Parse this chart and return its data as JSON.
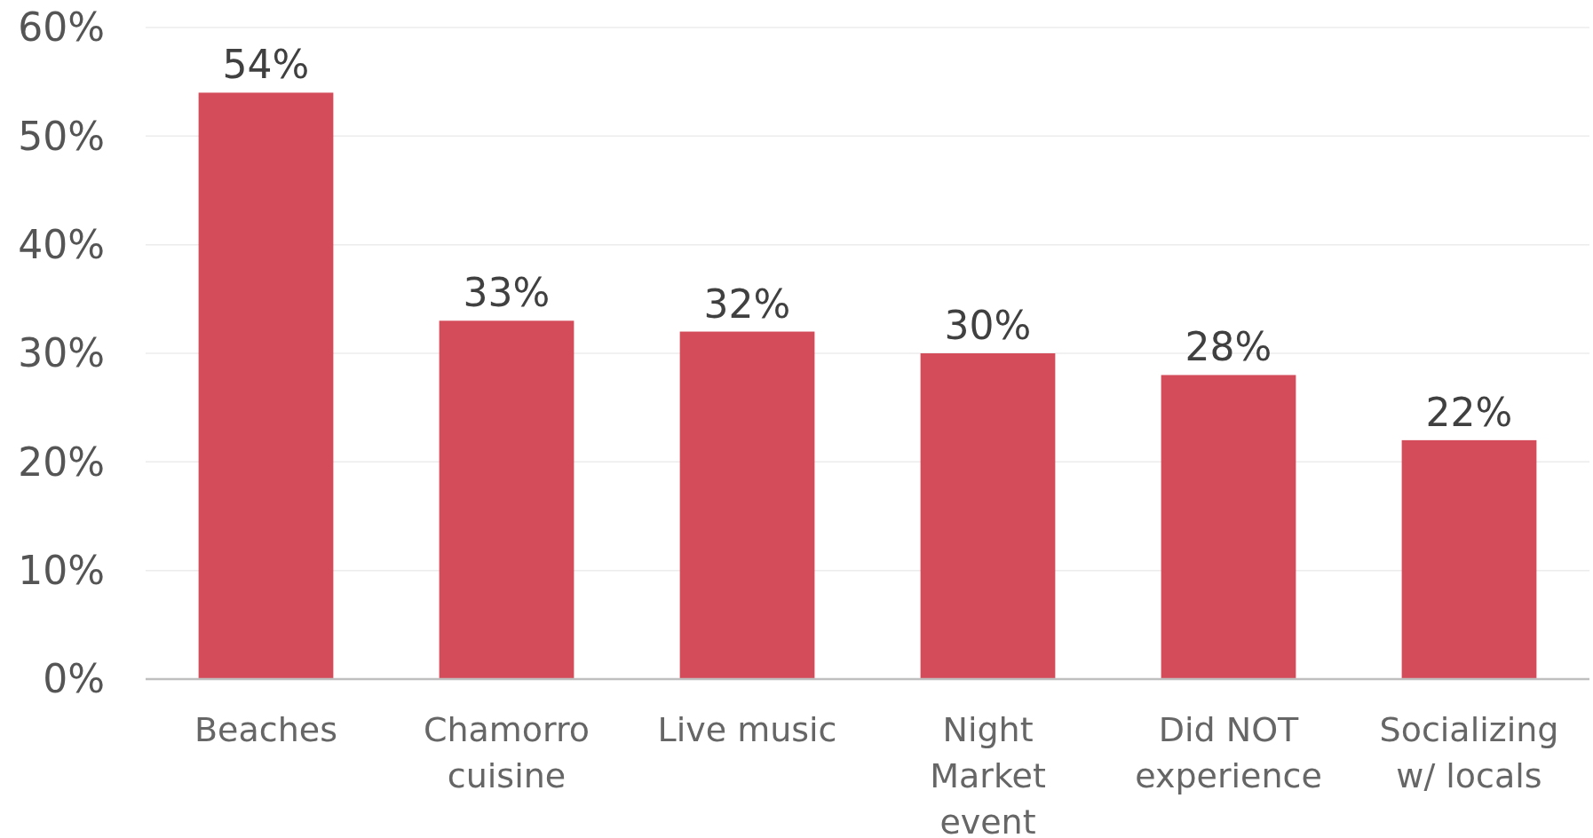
{
  "chart_data": {
    "type": "bar",
    "categories": [
      "Beaches",
      "Chamorro\ncuisine",
      "Live music",
      "Night\nMarket\nevent",
      "Did NOT\nexperience",
      "Socializing\nw/ locals"
    ],
    "values": [
      54,
      33,
      32,
      30,
      28,
      22
    ],
    "color": "#d44c5a",
    "ylim": [
      0,
      60
    ],
    "yticks": [
      {
        "value": 0,
        "label": "0%"
      },
      {
        "value": 10,
        "label": "10%"
      },
      {
        "value": 20,
        "label": "20%"
      },
      {
        "value": 30,
        "label": "30%"
      },
      {
        "value": 40,
        "label": "40%"
      },
      {
        "value": 50,
        "label": "50%"
      },
      {
        "value": 60,
        "label": "60%"
      }
    ],
    "grid": "y",
    "value_labels": [
      "54%",
      "33%",
      "32%",
      "30%",
      "28%",
      "22%"
    ]
  }
}
